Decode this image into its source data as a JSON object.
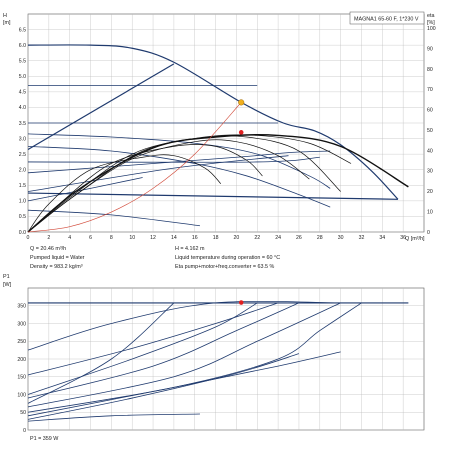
{
  "chart_data": [
    {
      "type": "line",
      "title": "MAGNA1 65-60 F, 1*230 V",
      "ylabel_left": "H [m]",
      "ylabel_right": "eta [%]",
      "xlabel": "Q [m³/h]",
      "xlim": [
        0,
        38
      ],
      "ylim": [
        0,
        7
      ],
      "eta_lim": [
        0,
        107
      ],
      "x_ticks": [
        "0",
        "2",
        "4",
        "6",
        "8",
        "10",
        "12",
        "14",
        "16",
        "18",
        "20",
        "22",
        "24",
        "26",
        "28",
        "30",
        "32",
        "34",
        "36"
      ],
      "y_ticks": [
        "0.0",
        "0.5",
        "1.0",
        "1.5",
        "2.0",
        "2.5",
        "3.0",
        "3.5",
        "4.0",
        "4.5",
        "5.0",
        "5.5",
        "6.0",
        "6.5"
      ],
      "eta_ticks": [
        "0",
        "10",
        "20",
        "30",
        "40",
        "50",
        "60",
        "70",
        "80",
        "90",
        "100"
      ],
      "pump_curves": [
        {
          "x": [
            0,
            6,
            10,
            14,
            20.46,
            24.5,
            27.5,
            30,
            33,
            35.5
          ],
          "y": [
            6.0,
            6.0,
            5.9,
            5.45,
            4.162,
            3.5,
            3.25,
            2.8,
            1.95,
            1.05
          ]
        },
        {
          "x": [
            0,
            22
          ],
          "y": [
            4.7,
            4.7
          ]
        },
        {
          "x": [
            0,
            24
          ],
          "y": [
            3.5,
            3.5
          ]
        },
        {
          "x": [
            0,
            8,
            16,
            22,
            27,
            29
          ],
          "y": [
            3.15,
            3.05,
            2.85,
            2.5,
            1.8,
            1.4
          ]
        },
        {
          "x": [
            0,
            8,
            16,
            21,
            26,
            29
          ],
          "y": [
            2.75,
            2.6,
            2.2,
            1.8,
            1.2,
            0.8
          ]
        },
        {
          "x": [
            0,
            22,
            28
          ],
          "y": [
            2.25,
            2.25,
            2.4
          ]
        },
        {
          "x": [
            0,
            20,
            25,
            29
          ],
          "y": [
            1.9,
            2.4,
            2.55,
            2.6
          ]
        },
        {
          "x": [
            0,
            14,
            25
          ],
          "y": [
            1.3,
            2.05,
            2.45
          ]
        },
        {
          "x": [
            0,
            6,
            11
          ],
          "y": [
            1.0,
            1.4,
            1.75
          ]
        },
        {
          "x": [
            0,
            8,
            16.5
          ],
          "y": [
            0.7,
            0.55,
            0.2
          ]
        }
      ],
      "prop_pressure_curves": [
        {
          "x": [
            0,
            14
          ],
          "y": [
            2.65,
            5.4
          ]
        },
        {
          "x": [
            0,
            35.5
          ],
          "y": [
            1.25,
            1.05
          ]
        }
      ],
      "efficiency_curves": [
        {
          "x": [
            0,
            2,
            6,
            11,
            14,
            17,
            18.5
          ],
          "y": [
            0,
            0.9,
            2.0,
            2.4,
            2.45,
            2.05,
            1.55
          ]
        },
        {
          "x": [
            0,
            3,
            8,
            14,
            18,
            21,
            22.5
          ],
          "y": [
            0,
            0.9,
            2.2,
            2.75,
            2.75,
            2.3,
            1.8
          ]
        },
        {
          "x": [
            0,
            4,
            10,
            16,
            20,
            24,
            27
          ],
          "y": [
            0,
            1.05,
            2.35,
            2.9,
            2.9,
            2.45,
            1.7
          ]
        },
        {
          "x": [
            0,
            4,
            10,
            16,
            21,
            26,
            30
          ],
          "y": [
            0,
            1.1,
            2.5,
            3.0,
            3.05,
            2.6,
            1.3
          ]
        },
        {
          "x": [
            0,
            5,
            11,
            17,
            22,
            27,
            31
          ],
          "y": [
            0,
            1.3,
            2.6,
            3.05,
            3.1,
            2.85,
            2.2
          ]
        },
        {
          "x": [
            0,
            5,
            12,
            18,
            24,
            30,
            36.5
          ],
          "y": [
            0,
            1.4,
            2.7,
            3.05,
            3.1,
            2.75,
            1.45
          ]
        }
      ],
      "system_curve": {
        "x": [
          0,
          4,
          8,
          12,
          16,
          20.46
        ],
        "y": [
          0,
          0.17,
          0.64,
          1.4,
          2.5,
          4.162
        ]
      },
      "operating_point": {
        "q": 20.46,
        "h": 4.162,
        "eta_x": 20.46,
        "eta_y": 3.2
      },
      "info": {
        "q": "Q = 20.46 m³/h",
        "h": "H = 4.162 m",
        "liquid": "Pumped liquid = Water",
        "temp": "Liquid temperature during operation = 60 °C",
        "density": "Density = 983.2 kg/m³",
        "eta": "Eta pump+motor+freq.converter = 63.5 %"
      }
    },
    {
      "type": "line",
      "ylabel": "P1 [W]",
      "xlim": [
        0,
        38
      ],
      "ylim": [
        0,
        400
      ],
      "y_ticks": [
        "0",
        "50",
        "100",
        "150",
        "200",
        "250",
        "300",
        "350"
      ],
      "power_curves": [
        {
          "x": [
            0,
            8,
            18,
            30
          ],
          "y": [
            225,
            300,
            358,
            358
          ]
        },
        {
          "x": [
            0,
            10,
            18,
            24
          ],
          "y": [
            155,
            230,
            300,
            358
          ]
        },
        {
          "x": [
            0,
            8,
            14
          ],
          "y": [
            75,
            200,
            358
          ]
        },
        {
          "x": [
            0,
            10,
            18,
            22
          ],
          "y": [
            100,
            200,
            290,
            358
          ]
        },
        {
          "x": [
            0,
            12,
            20,
            26
          ],
          "y": [
            90,
            180,
            280,
            358
          ]
        },
        {
          "x": [
            0,
            14,
            22,
            30
          ],
          "y": [
            65,
            150,
            250,
            358
          ]
        },
        {
          "x": [
            0,
            14,
            24,
            28,
            32
          ],
          "y": [
            50,
            120,
            200,
            280,
            358
          ]
        },
        {
          "x": [
            0,
            14,
            24,
            30
          ],
          "y": [
            40,
            120,
            180,
            220
          ]
        },
        {
          "x": [
            0,
            10,
            20,
            26
          ],
          "y": [
            30,
            90,
            160,
            215
          ]
        },
        {
          "x": [
            0,
            8,
            16.5
          ],
          "y": [
            25,
            40,
            45
          ]
        },
        {
          "x": [
            0,
            36.5
          ],
          "y": [
            358,
            358
          ]
        }
      ],
      "operating_point": {
        "q": 20.46,
        "p1": 359
      },
      "info": {
        "p1": "P1 = 359 W"
      }
    }
  ]
}
